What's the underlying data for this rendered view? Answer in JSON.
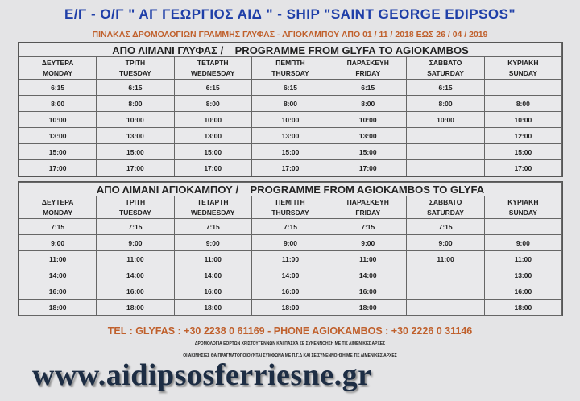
{
  "title": "Ε/Γ - Ο/Γ \" ΑΓ ΓΕΩΡΓΙΟΣ ΑΙΔ \" -  SHIP \"SAINT GEORGE EDIPSOS\"",
  "subtitle": "ΠΙΝΑΚΑΣ ΔΡΟΜΟΛΟΓΙΩΝ ΓΡΑΜΜΗΣ ΓΛΥΦΑΣ - ΑΓΙΟΚΑΜΠΟΥ ΑΠΟ 01 / 11 / 2018 ΕΩΣ 26 / 04 / 2019",
  "days": [
    {
      "gr": "ΔΕΥΤΕΡΑ",
      "en": "MONDAY"
    },
    {
      "gr": "ΤΡΙΤΗ",
      "en": "TUESDAY"
    },
    {
      "gr": "ΤΕΤΑΡΤΗ",
      "en": "WEDNESDAY"
    },
    {
      "gr": "ΠΕΜΠΤΗ",
      "en": "THURSDAY"
    },
    {
      "gr": "ΠΑΡΑΣΚΕΥΗ",
      "en": "FRIDAY"
    },
    {
      "gr": "ΣΑΒΒΑΤΟ",
      "en": "SATURDAY"
    },
    {
      "gr": "ΚΥΡΙΑΚΗ",
      "en": "SUNDAY"
    }
  ],
  "tables": [
    {
      "heading_gr": "ΑΠΟ ΛΙΜΑΝΙ ΓΛΥΦΑΣ  /",
      "heading_en": "PROGRAMME FROM GLYFA TO AGIOKAMBOS",
      "rows": [
        [
          "6:15",
          "6:15",
          "6:15",
          "6:15",
          "6:15",
          "6:15",
          ""
        ],
        [
          "8:00",
          "8:00",
          "8:00",
          "8:00",
          "8:00",
          "8:00",
          "8:00"
        ],
        [
          "10:00",
          "10:00",
          "10:00",
          "10:00",
          "10:00",
          "10:00",
          "10:00"
        ],
        [
          "13:00",
          "13:00",
          "13:00",
          "13:00",
          "13:00",
          "",
          "12:00"
        ],
        [
          "15:00",
          "15:00",
          "15:00",
          "15:00",
          "15:00",
          "",
          "15:00"
        ],
        [
          "17:00",
          "17:00",
          "17:00",
          "17:00",
          "17:00",
          "",
          "17:00"
        ]
      ]
    },
    {
      "heading_gr": "ΑΠΟ ΛΙΜΑΝΙ ΑΓΙΟΚΑΜΠΟΥ  /",
      "heading_en": "PROGRAMME FROM AGIOKAMBOS TO GLYFA",
      "rows": [
        [
          "7:15",
          "7:15",
          "7:15",
          "7:15",
          "7:15",
          "7:15",
          ""
        ],
        [
          "9:00",
          "9:00",
          "9:00",
          "9:00",
          "9:00",
          "9:00",
          "9:00"
        ],
        [
          "11:00",
          "11:00",
          "11:00",
          "11:00",
          "11:00",
          "11:00",
          "11:00"
        ],
        [
          "14:00",
          "14:00",
          "14:00",
          "14:00",
          "14:00",
          "",
          "13:00"
        ],
        [
          "16:00",
          "16:00",
          "16:00",
          "16:00",
          "16:00",
          "",
          "16:00"
        ],
        [
          "18:00",
          "18:00",
          "18:00",
          "18:00",
          "18:00",
          "",
          "18:00"
        ]
      ]
    }
  ],
  "tel": "TEL :  GLYFAS : +30 2238 0 61169   -  PHONE  AGIOKAMBOS  : +30 2226 0 31146",
  "note1": "ΔΡΟΜΟΛΟΓΙΑ ΕΟΡΤΩΝ ΧΡΙΣΤΟΥΓΕΝΝΩΝ ΚΑΙ ΠΑΣΧΑ ΣΕ ΣΥΝΕΝΝΟΗΣΗ ΜΕ ΤΙΣ ΛΙΜΕΝΙΚΕΣ ΑΡΧΕΣ",
  "note2": "ΟΙ ΑΚΙΝΗΣΙΕΣ ΘΑ ΠΡΑΓΜΑΤΟΠΟΙΟΥΝΤΑΙ ΣΥΜΦΩΝΑ ΜΕ Π.Γ.Δ ΚΑΙ ΣΕ ΣΥΝΕΝΝΟΗΣΗ ΜΕ ΤΙΣ ΛΙΜΕΝΙΚΕΣ ΑΡΧΕΣ",
  "url": "www.aidipsosferriesne.gr",
  "colors": {
    "title": "#1f3fa8",
    "accent": "#c0602c"
  }
}
